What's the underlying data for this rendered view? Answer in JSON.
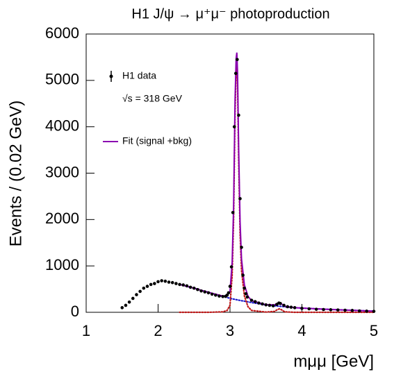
{
  "chart_data": {
    "type": "scatter",
    "title": "H1 J/ψ → μ⁺μ⁻ photoproduction",
    "xlabel": "mμμ [GeV]",
    "ylabel": "Events / (0.02 GeV)",
    "annotation": "√s = 318 GeV",
    "xlim": [
      1,
      5
    ],
    "ylim": [
      0,
      6000
    ],
    "xticks": [
      1,
      2,
      3,
      4,
      5
    ],
    "yticks": [
      0,
      1000,
      2000,
      3000,
      4000,
      5000,
      6000
    ],
    "grid": false,
    "legend": "upper left",
    "series": [
      {
        "name": "H1 data",
        "color": "#000000",
        "mark": "points",
        "x": [
          1.5,
          1.55,
          1.6,
          1.65,
          1.7,
          1.75,
          1.8,
          1.85,
          1.9,
          1.95,
          2.0,
          2.05,
          2.1,
          2.15,
          2.2,
          2.25,
          2.3,
          2.35,
          2.4,
          2.45,
          2.5,
          2.55,
          2.6,
          2.65,
          2.7,
          2.75,
          2.8,
          2.85,
          2.9,
          2.94,
          2.96,
          2.98,
          3.0,
          3.02,
          3.04,
          3.06,
          3.08,
          3.1,
          3.12,
          3.14,
          3.16,
          3.18,
          3.2,
          3.22,
          3.24,
          3.3,
          3.35,
          3.4,
          3.45,
          3.5,
          3.55,
          3.6,
          3.65,
          3.68,
          3.7,
          3.75,
          3.8,
          3.85,
          3.9,
          4.0,
          4.1,
          4.2,
          4.3,
          4.4,
          4.5,
          4.6,
          4.7,
          4.8,
          4.9,
          5.0
        ],
        "values": [
          100,
          150,
          220,
          300,
          380,
          450,
          520,
          560,
          600,
          620,
          660,
          680,
          670,
          650,
          640,
          620,
          600,
          590,
          570,
          540,
          520,
          490,
          460,
          440,
          420,
          390,
          370,
          350,
          340,
          345,
          370,
          420,
          560,
          980,
          2150,
          4000,
          5150,
          5450,
          4250,
          2450,
          1400,
          800,
          520,
          400,
          330,
          260,
          230,
          200,
          180,
          160,
          150,
          140,
          170,
          200,
          190,
          150,
          120,
          110,
          100,
          85,
          75,
          65,
          60,
          55,
          50,
          45,
          40,
          30,
          25,
          20
        ]
      },
      {
        "name": "Fit (signal +bkg)",
        "color": "#8a00b0",
        "mark": "line",
        "x": [
          2.3,
          2.5,
          2.7,
          2.9,
          2.96,
          3.0,
          3.03,
          3.05,
          3.07,
          3.085,
          3.095,
          3.105,
          3.12,
          3.14,
          3.16,
          3.2,
          3.25,
          3.3,
          3.5,
          3.62,
          3.66,
          3.69,
          3.72,
          3.76,
          3.9,
          4.2,
          4.5,
          5.0
        ],
        "values": [
          600,
          520,
          430,
          350,
          360,
          450,
          1090,
          2285,
          4578,
          5473,
          5600,
          5167,
          3562,
          1956,
          1150,
          590,
          345,
          250,
          165,
          160,
          195,
          205,
          177,
          130,
          100,
          75,
          55,
          25
        ]
      },
      {
        "color": "#1a1acc",
        "mark": "dots",
        "x": [
          2.3,
          2.5,
          2.7,
          2.9,
          2.96,
          3.0,
          3.03,
          3.05,
          3.07,
          3.085,
          3.095,
          3.105,
          3.12,
          3.14,
          3.16,
          3.2,
          3.25,
          3.3,
          3.5,
          3.62,
          3.66,
          3.69,
          3.72,
          3.76,
          3.9,
          4.2,
          4.5,
          5.0
        ],
        "values": [
          600,
          520,
          430,
          340,
          320,
          300,
          290,
          285,
          278,
          273,
          270,
          267,
          262,
          256,
          250,
          240,
          225,
          210,
          160,
          140,
          135,
          130,
          127,
          120,
          100,
          75,
          55,
          25
        ]
      },
      {
        "color": "#c01818",
        "mark": "dots",
        "x": [
          2.3,
          2.5,
          2.7,
          2.9,
          2.96,
          3.0,
          3.03,
          3.05,
          3.07,
          3.085,
          3.095,
          3.105,
          3.12,
          3.14,
          3.16,
          3.2,
          3.25,
          3.3,
          3.5,
          3.62,
          3.66,
          3.69,
          3.72,
          3.76,
          3.9,
          4.2,
          4.5,
          5.0
        ],
        "values": [
          0,
          0,
          0,
          10,
          40,
          150,
          800,
          2000,
          4300,
          5200,
          5330,
          4900,
          3300,
          1700,
          900,
          350,
          120,
          40,
          5,
          20,
          60,
          75,
          50,
          10,
          0,
          0,
          0,
          0
        ]
      }
    ]
  }
}
